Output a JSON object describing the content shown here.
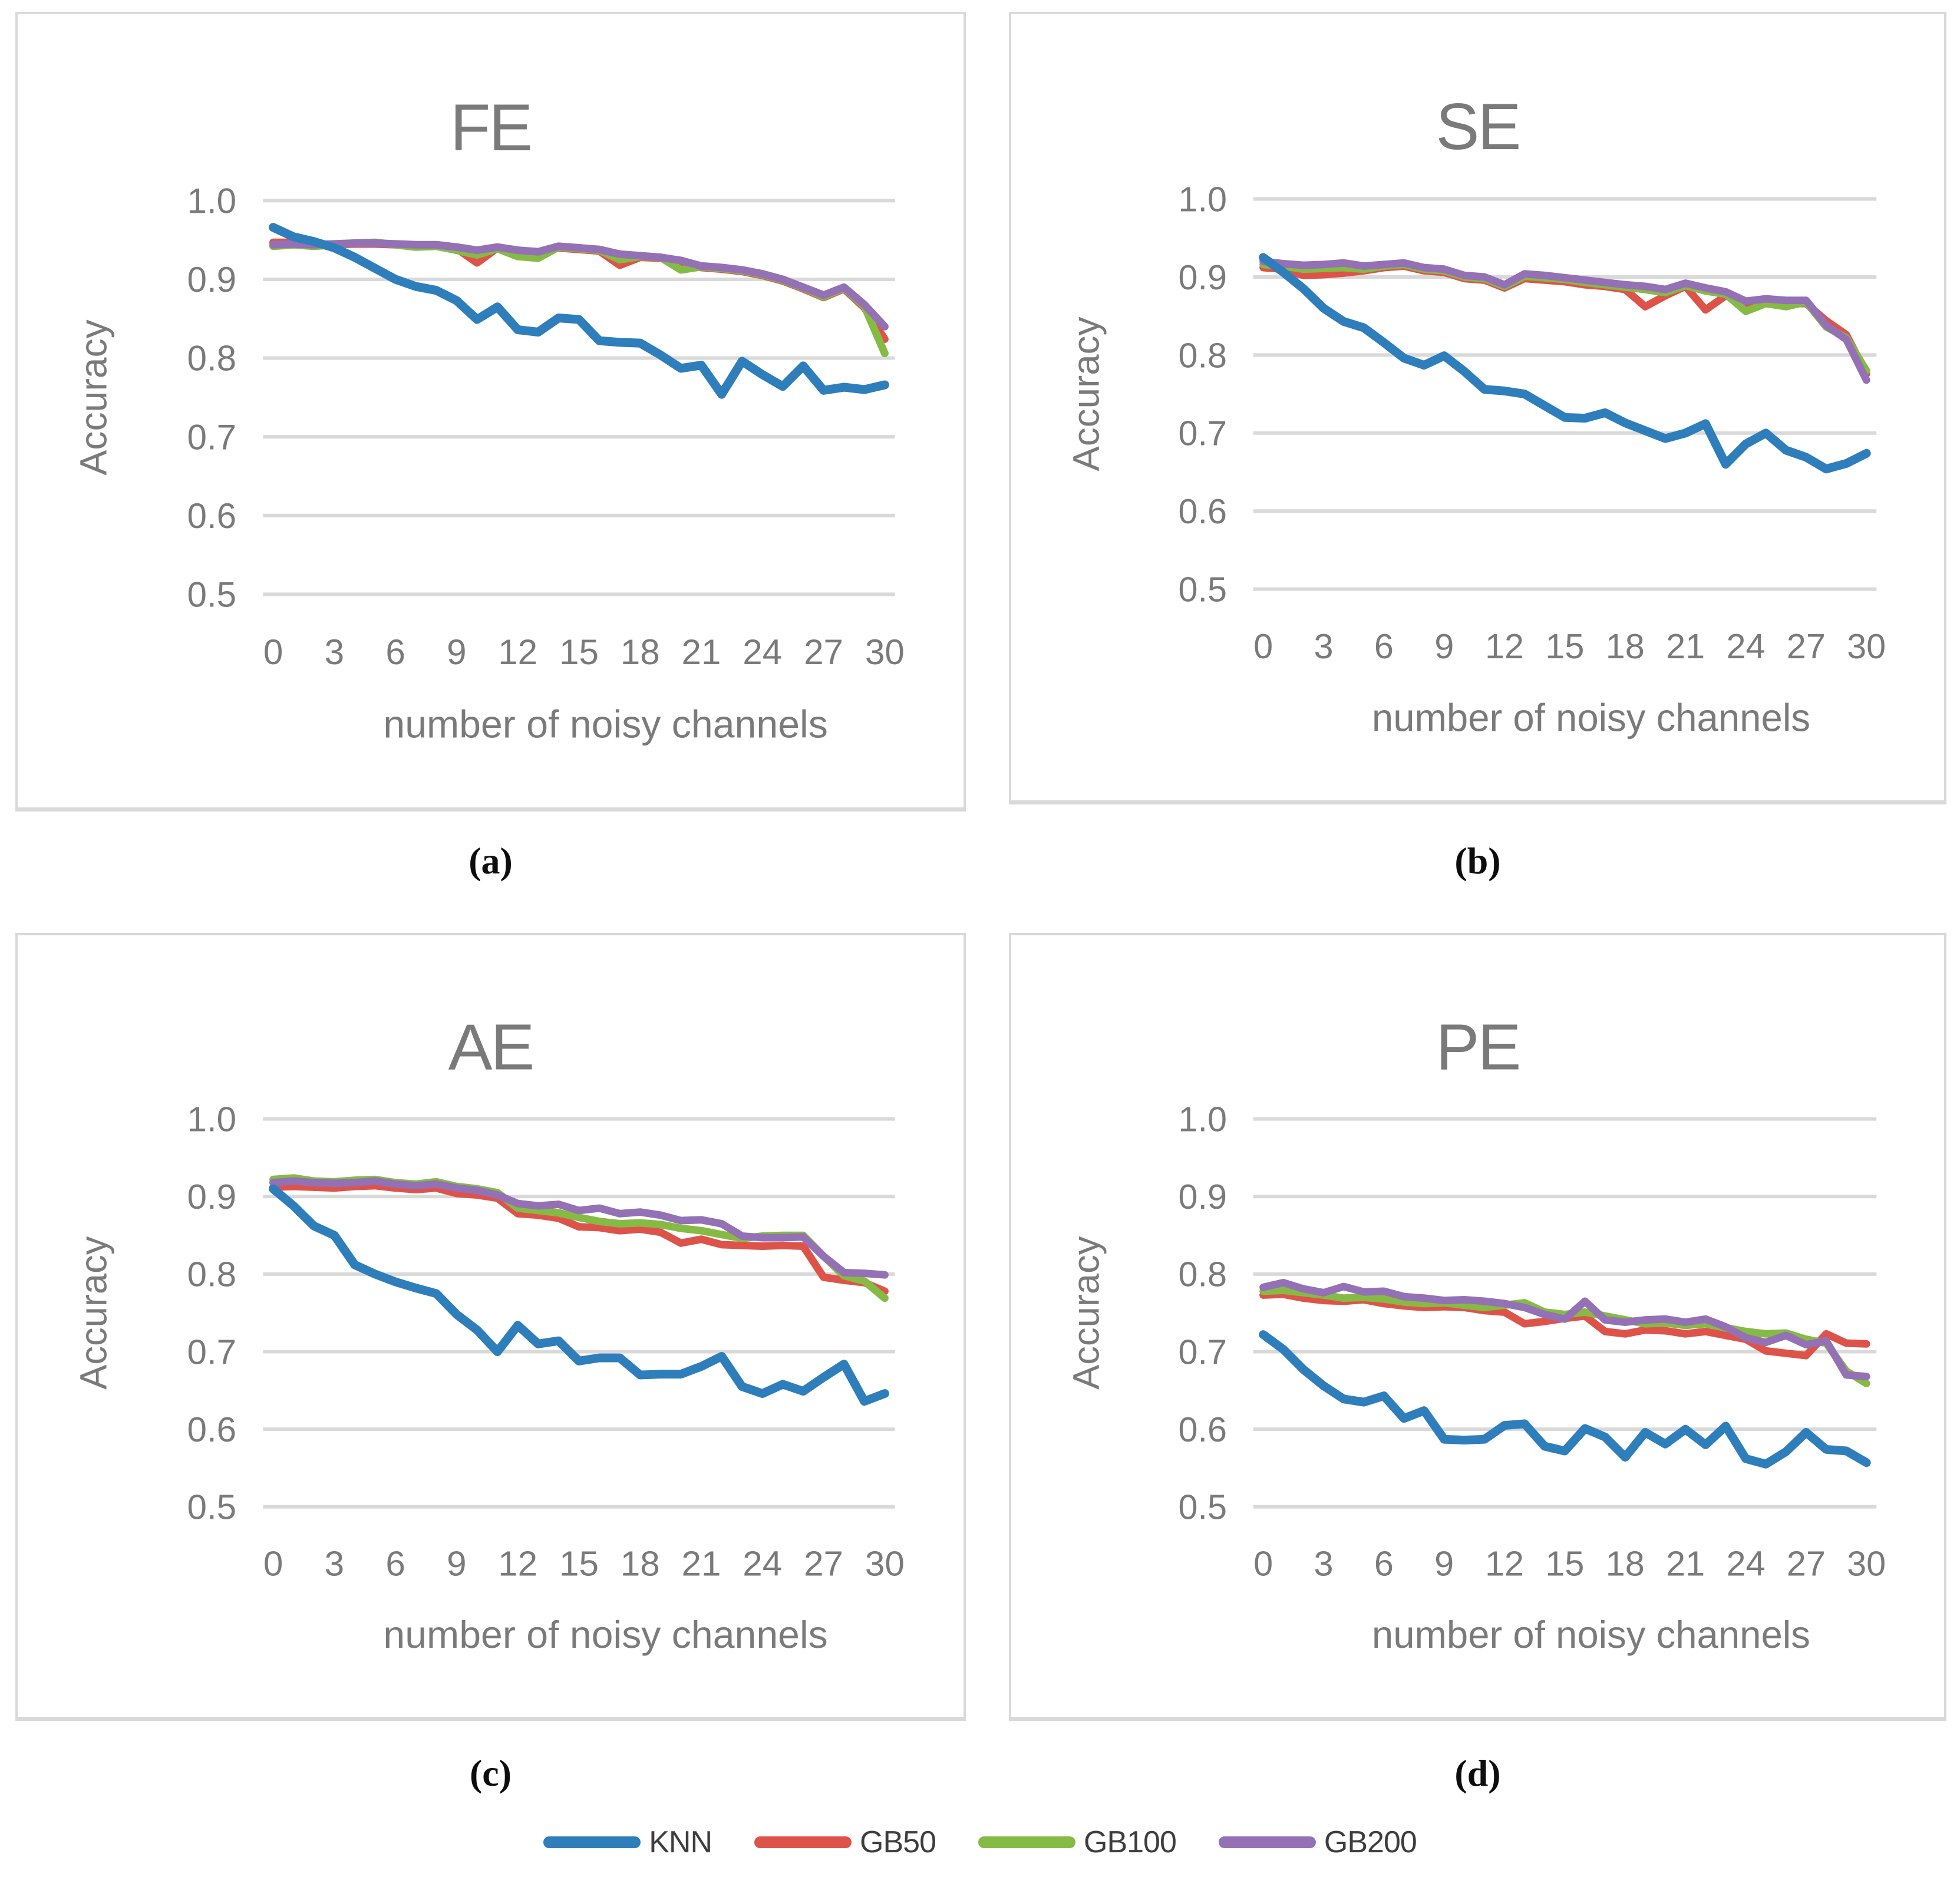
{
  "captions": {
    "a": "(a)",
    "b": "(b)",
    "c": "(c)",
    "d": "(d)"
  },
  "legend": [
    {
      "name": "KNN",
      "color": "#2E7EBC"
    },
    {
      "name": "GB50",
      "color": "#DE5349"
    },
    {
      "name": "GB100",
      "color": "#85BB45"
    },
    {
      "name": "GB200",
      "color": "#9470B5"
    }
  ],
  "style": {
    "grid_color": "#D9D9D9",
    "axis_text_color": "#7A7A7A",
    "panel_border_color": "#D9D9D9",
    "legend_text_color": "#3D3D3D",
    "knn_line_width": 15,
    "gb_line_width": 13
  },
  "chart_data": [
    {
      "type": "line",
      "title": "FE",
      "xlabel": "number of noisy channels",
      "ylabel": "Accuracy",
      "ylim": [
        0.5,
        1.0
      ],
      "y_ticks": [
        "1.0",
        "0.9",
        "0.8",
        "0.7",
        "0.6",
        "0.5"
      ],
      "x_tick_step": 3,
      "grid": "horizontal",
      "legend_position": "shared-bottom",
      "x": [
        0,
        1,
        2,
        3,
        4,
        5,
        6,
        7,
        8,
        9,
        10,
        11,
        12,
        13,
        14,
        15,
        16,
        17,
        18,
        19,
        20,
        21,
        22,
        23,
        24,
        25,
        26,
        27,
        28,
        29,
        30
      ],
      "series": [
        {
          "name": "GB50",
          "color": "#DE5349",
          "values": [
            0.947,
            0.947,
            0.943,
            0.944,
            0.945,
            0.945,
            0.944,
            0.943,
            0.943,
            0.939,
            0.921,
            0.94,
            0.935,
            0.933,
            0.94,
            0.938,
            0.936,
            0.918,
            0.928,
            0.927,
            0.922,
            0.915,
            0.913,
            0.91,
            0.905,
            0.898,
            0.888,
            0.877,
            0.888,
            0.864,
            0.824
          ]
        },
        {
          "name": "GB100",
          "color": "#85BB45",
          "values": [
            0.942,
            0.944,
            0.942,
            0.944,
            0.946,
            0.947,
            0.944,
            0.941,
            0.942,
            0.937,
            0.931,
            0.939,
            0.929,
            0.927,
            0.941,
            0.939,
            0.937,
            0.925,
            0.929,
            0.928,
            0.912,
            0.916,
            0.914,
            0.911,
            0.906,
            0.899,
            0.889,
            0.878,
            0.889,
            0.866,
            0.806
          ]
        },
        {
          "name": "GB200",
          "color": "#9470B5",
          "values": [
            0.944,
            0.945,
            0.944,
            0.945,
            0.946,
            0.946,
            0.945,
            0.944,
            0.944,
            0.941,
            0.937,
            0.941,
            0.937,
            0.935,
            0.942,
            0.94,
            0.938,
            0.932,
            0.93,
            0.928,
            0.924,
            0.917,
            0.915,
            0.912,
            0.907,
            0.9,
            0.89,
            0.88,
            0.89,
            0.868,
            0.84
          ]
        },
        {
          "name": "KNN",
          "color": "#2E7EBC",
          "values": [
            0.966,
            0.954,
            0.948,
            0.94,
            0.928,
            0.914,
            0.9,
            0.891,
            0.886,
            0.873,
            0.849,
            0.865,
            0.836,
            0.833,
            0.851,
            0.849,
            0.822,
            0.82,
            0.819,
            0.804,
            0.787,
            0.791,
            0.754,
            0.796,
            0.779,
            0.764,
            0.79,
            0.759,
            0.763,
            0.76,
            0.766
          ]
        }
      ]
    },
    {
      "type": "line",
      "title": "SE",
      "xlabel": "number of noisy channels",
      "ylabel": "Accuracy",
      "ylim": [
        0.5,
        1.0
      ],
      "y_ticks": [
        "1.0",
        "0.9",
        "0.8",
        "0.7",
        "0.6",
        "0.5"
      ],
      "x_tick_step": 3,
      "grid": "horizontal",
      "legend_position": "shared-bottom",
      "x": [
        0,
        1,
        2,
        3,
        4,
        5,
        6,
        7,
        8,
        9,
        10,
        11,
        12,
        13,
        14,
        15,
        16,
        17,
        18,
        19,
        20,
        21,
        22,
        23,
        24,
        25,
        26,
        27,
        28,
        29,
        30
      ],
      "series": [
        {
          "name": "GB50",
          "color": "#DE5349",
          "values": [
            0.912,
            0.91,
            0.902,
            0.903,
            0.905,
            0.908,
            0.912,
            0.914,
            0.908,
            0.906,
            0.898,
            0.896,
            0.886,
            0.898,
            0.896,
            0.894,
            0.89,
            0.888,
            0.884,
            0.862,
            0.876,
            0.888,
            0.858,
            0.876,
            0.866,
            0.868,
            0.866,
            0.866,
            0.844,
            0.826,
            0.776
          ]
        },
        {
          "name": "GB100",
          "color": "#85BB45",
          "values": [
            0.916,
            0.914,
            0.91,
            0.911,
            0.912,
            0.91,
            0.914,
            0.916,
            0.91,
            0.908,
            0.9,
            0.898,
            0.888,
            0.901,
            0.899,
            0.897,
            0.893,
            0.89,
            0.887,
            0.884,
            0.88,
            0.889,
            0.882,
            0.878,
            0.856,
            0.866,
            0.862,
            0.868,
            0.836,
            0.822,
            0.78
          ]
        },
        {
          "name": "GB200",
          "color": "#9470B5",
          "values": [
            0.92,
            0.917,
            0.915,
            0.916,
            0.918,
            0.914,
            0.916,
            0.918,
            0.912,
            0.91,
            0.902,
            0.9,
            0.89,
            0.904,
            0.902,
            0.899,
            0.896,
            0.893,
            0.89,
            0.888,
            0.884,
            0.892,
            0.886,
            0.881,
            0.869,
            0.872,
            0.87,
            0.87,
            0.838,
            0.82,
            0.768
          ]
        },
        {
          "name": "KNN",
          "color": "#2E7EBC",
          "values": [
            0.925,
            0.906,
            0.885,
            0.86,
            0.843,
            0.835,
            0.816,
            0.796,
            0.787,
            0.799,
            0.779,
            0.756,
            0.754,
            0.75,
            0.735,
            0.72,
            0.719,
            0.726,
            0.713,
            0.703,
            0.693,
            0.7,
            0.712,
            0.66,
            0.686,
            0.7,
            0.678,
            0.669,
            0.654,
            0.661,
            0.674
          ]
        }
      ]
    },
    {
      "type": "line",
      "title": "AE",
      "xlabel": "number of noisy channels",
      "ylabel": "Accuracy",
      "ylim": [
        0.5,
        1.0
      ],
      "y_ticks": [
        "1.0",
        "0.9",
        "0.8",
        "0.7",
        "0.6",
        "0.5"
      ],
      "x_tick_step": 3,
      "grid": "horizontal",
      "legend_position": "shared-bottom",
      "x": [
        0,
        1,
        2,
        3,
        4,
        5,
        6,
        7,
        8,
        9,
        10,
        11,
        12,
        13,
        14,
        15,
        16,
        17,
        18,
        19,
        20,
        21,
        22,
        23,
        24,
        25,
        26,
        27,
        28,
        29,
        30
      ],
      "series": [
        {
          "name": "GB50",
          "color": "#DE5349",
          "values": [
            0.912,
            0.913,
            0.912,
            0.911,
            0.913,
            0.914,
            0.911,
            0.909,
            0.911,
            0.904,
            0.902,
            0.898,
            0.878,
            0.876,
            0.872,
            0.861,
            0.86,
            0.856,
            0.858,
            0.854,
            0.84,
            0.845,
            0.838,
            0.837,
            0.836,
            0.837,
            0.836,
            0.796,
            0.792,
            0.789,
            0.778
          ]
        },
        {
          "name": "GB100",
          "color": "#85BB45",
          "values": [
            0.922,
            0.924,
            0.92,
            0.919,
            0.921,
            0.922,
            0.918,
            0.916,
            0.919,
            0.913,
            0.91,
            0.905,
            0.885,
            0.882,
            0.879,
            0.873,
            0.868,
            0.865,
            0.866,
            0.864,
            0.859,
            0.856,
            0.851,
            0.846,
            0.849,
            0.85,
            0.85,
            0.823,
            0.798,
            0.791,
            0.769
          ]
        },
        {
          "name": "GB200",
          "color": "#9470B5",
          "values": [
            0.918,
            0.92,
            0.918,
            0.917,
            0.918,
            0.92,
            0.916,
            0.914,
            0.916,
            0.911,
            0.908,
            0.902,
            0.891,
            0.888,
            0.89,
            0.882,
            0.885,
            0.878,
            0.88,
            0.876,
            0.869,
            0.87,
            0.865,
            0.849,
            0.847,
            0.847,
            0.848,
            0.823,
            0.802,
            0.801,
            0.799
          ]
        },
        {
          "name": "KNN",
          "color": "#2E7EBC",
          "values": [
            0.91,
            0.888,
            0.862,
            0.85,
            0.812,
            0.8,
            0.79,
            0.782,
            0.775,
            0.748,
            0.728,
            0.7,
            0.734,
            0.71,
            0.714,
            0.688,
            0.692,
            0.692,
            0.67,
            0.671,
            0.671,
            0.681,
            0.694,
            0.655,
            0.646,
            0.658,
            0.649,
            0.667,
            0.684,
            0.636,
            0.646
          ]
        }
      ]
    },
    {
      "type": "line",
      "title": "PE",
      "xlabel": "number of noisy channels",
      "ylabel": "Accuracy",
      "ylim": [
        0.5,
        1.0
      ],
      "y_ticks": [
        "1.0",
        "0.9",
        "0.8",
        "0.7",
        "0.6",
        "0.5"
      ],
      "x_tick_step": 3,
      "grid": "horizontal",
      "legend_position": "shared-bottom",
      "x": [
        0,
        1,
        2,
        3,
        4,
        5,
        6,
        7,
        8,
        9,
        10,
        11,
        12,
        13,
        14,
        15,
        16,
        17,
        18,
        19,
        20,
        21,
        22,
        23,
        24,
        25,
        26,
        27,
        28,
        29,
        30
      ],
      "series": [
        {
          "name": "GB50",
          "color": "#DE5349",
          "values": [
            0.773,
            0.774,
            0.769,
            0.766,
            0.765,
            0.767,
            0.762,
            0.759,
            0.757,
            0.758,
            0.757,
            0.753,
            0.751,
            0.736,
            0.739,
            0.743,
            0.746,
            0.726,
            0.723,
            0.728,
            0.727,
            0.723,
            0.726,
            0.721,
            0.716,
            0.701,
            0.698,
            0.695,
            0.723,
            0.711,
            0.71
          ]
        },
        {
          "name": "GB100",
          "color": "#85BB45",
          "values": [
            0.778,
            0.779,
            0.776,
            0.773,
            0.769,
            0.77,
            0.768,
            0.764,
            0.762,
            0.763,
            0.76,
            0.757,
            0.76,
            0.763,
            0.751,
            0.748,
            0.751,
            0.746,
            0.741,
            0.736,
            0.737,
            0.734,
            0.736,
            0.731,
            0.726,
            0.723,
            0.724,
            0.716,
            0.711,
            0.675,
            0.659
          ]
        },
        {
          "name": "GB200",
          "color": "#9470B5",
          "values": [
            0.783,
            0.789,
            0.781,
            0.776,
            0.784,
            0.777,
            0.778,
            0.771,
            0.769,
            0.766,
            0.767,
            0.765,
            0.762,
            0.757,
            0.748,
            0.742,
            0.765,
            0.741,
            0.738,
            0.741,
            0.742,
            0.738,
            0.742,
            0.732,
            0.718,
            0.712,
            0.721,
            0.709,
            0.714,
            0.67,
            0.668
          ]
        },
        {
          "name": "KNN",
          "color": "#2E7EBC",
          "values": [
            0.722,
            0.703,
            0.677,
            0.656,
            0.639,
            0.635,
            0.643,
            0.614,
            0.624,
            0.587,
            0.586,
            0.587,
            0.605,
            0.607,
            0.578,
            0.572,
            0.601,
            0.59,
            0.564,
            0.596,
            0.581,
            0.6,
            0.58,
            0.604,
            0.562,
            0.555,
            0.571,
            0.596,
            0.574,
            0.572,
            0.557
          ]
        }
      ]
    }
  ]
}
